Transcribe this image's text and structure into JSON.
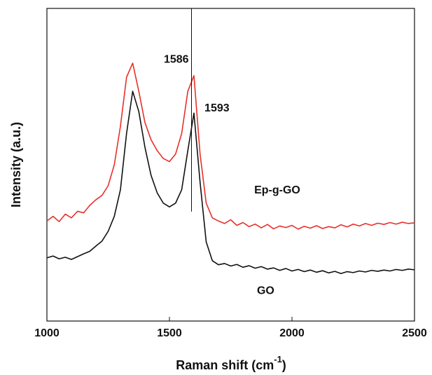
{
  "chart_data": {
    "type": "line",
    "xlabel": {
      "text": "Raman shift (cm",
      "sup": "-1",
      "tail": ")"
    },
    "ylabel": "Intensity (a.u.)",
    "x": [
      1000,
      1025,
      1050,
      1075,
      1100,
      1125,
      1150,
      1175,
      1200,
      1225,
      1250,
      1275,
      1300,
      1325,
      1350,
      1375,
      1400,
      1425,
      1450,
      1475,
      1500,
      1525,
      1550,
      1575,
      1600,
      1625,
      1650,
      1675,
      1700,
      1725,
      1750,
      1775,
      1800,
      1825,
      1850,
      1875,
      1900,
      1925,
      1950,
      1975,
      2000,
      2025,
      2050,
      2075,
      2100,
      2125,
      2150,
      2175,
      2200,
      2225,
      2250,
      2275,
      2300,
      2325,
      2350,
      2375,
      2400,
      2425,
      2450,
      2475,
      2500
    ],
    "series": [
      {
        "name": "Ep-g-GO",
        "color": "#e8302a",
        "label_x": 1846,
        "label_y": 41.7,
        "values": [
          32.0,
          33.5,
          31.8,
          34.2,
          33.0,
          35.1,
          34.6,
          37.0,
          38.8,
          40.2,
          43.3,
          50.0,
          62.3,
          78.0,
          82.5,
          73.5,
          63.5,
          58.0,
          54.5,
          52.0,
          51.0,
          53.4,
          60.0,
          73.5,
          78.5,
          53.4,
          37.7,
          33.0,
          32.0,
          31.2,
          32.4,
          30.6,
          31.5,
          30.2,
          31.0,
          29.8,
          30.9,
          29.5,
          30.4,
          29.9,
          30.6,
          29.4,
          30.3,
          29.7,
          30.5,
          29.6,
          30.2,
          29.8,
          30.8,
          30.1,
          31.0,
          30.4,
          31.2,
          30.6,
          31.3,
          30.9,
          31.5,
          31.0,
          31.6,
          31.2,
          31.4
        ]
      },
      {
        "name": "GO",
        "color": "#111111",
        "label_x": 1857,
        "label_y": 9.6,
        "values": [
          20.2,
          20.8,
          19.9,
          20.4,
          19.7,
          20.6,
          21.5,
          22.3,
          24.0,
          25.6,
          28.7,
          33.5,
          42.0,
          60.0,
          73.5,
          67.0,
          55.6,
          46.6,
          41.0,
          37.7,
          36.5,
          37.7,
          42.0,
          54.5,
          66.5,
          44.4,
          25.3,
          19.3,
          18.0,
          18.4,
          17.6,
          18.1,
          17.2,
          17.7,
          16.9,
          17.4,
          16.6,
          17.0,
          16.2,
          16.8,
          16.0,
          16.5,
          15.8,
          16.3,
          15.6,
          16.1,
          15.4,
          15.9,
          15.2,
          15.8,
          15.5,
          16.0,
          15.7,
          16.2,
          15.9,
          16.3,
          16.0,
          16.5,
          16.2,
          16.6,
          16.4
        ]
      }
    ],
    "annotations": [
      {
        "text": "1586",
        "x": 1477,
        "y": 83.6
      },
      {
        "text": "1593",
        "x": 1643,
        "y": 68
      }
    ],
    "vlines": [
      {
        "x": 1590,
        "y": [
          35,
          100
        ]
      }
    ],
    "xlim": [
      1000,
      2500
    ],
    "xticks": [
      1000,
      1500,
      2000,
      2500
    ],
    "ylim": [
      0,
      100
    ]
  }
}
